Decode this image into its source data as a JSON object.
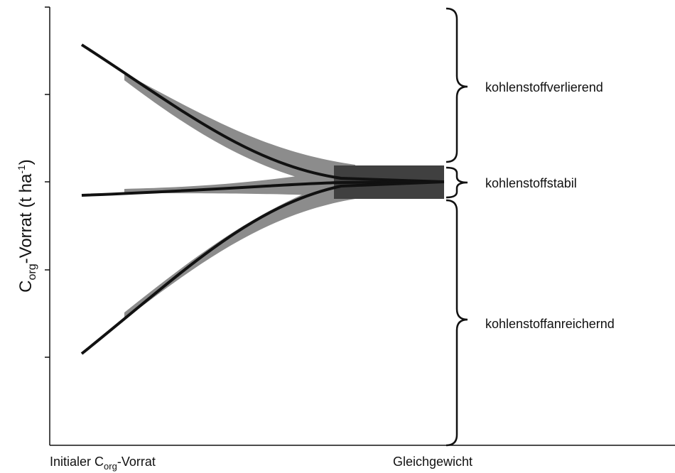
{
  "y_axis": {
    "label": {
      "base": "C",
      "sub": "org",
      "main": "-Vorrat (t ha",
      "sup": "-1",
      "end": ")"
    }
  },
  "x_axis": {
    "start": {
      "base": "Initialer C",
      "sub": "org",
      "end": "-Vorrat"
    },
    "end": "Gleichgewicht"
  },
  "braces": [
    {
      "label": "kohlenstoffverlierend"
    },
    {
      "label": "kohlenstoffstabil"
    },
    {
      "label": "kohlenstoffanreichernd"
    }
  ]
}
